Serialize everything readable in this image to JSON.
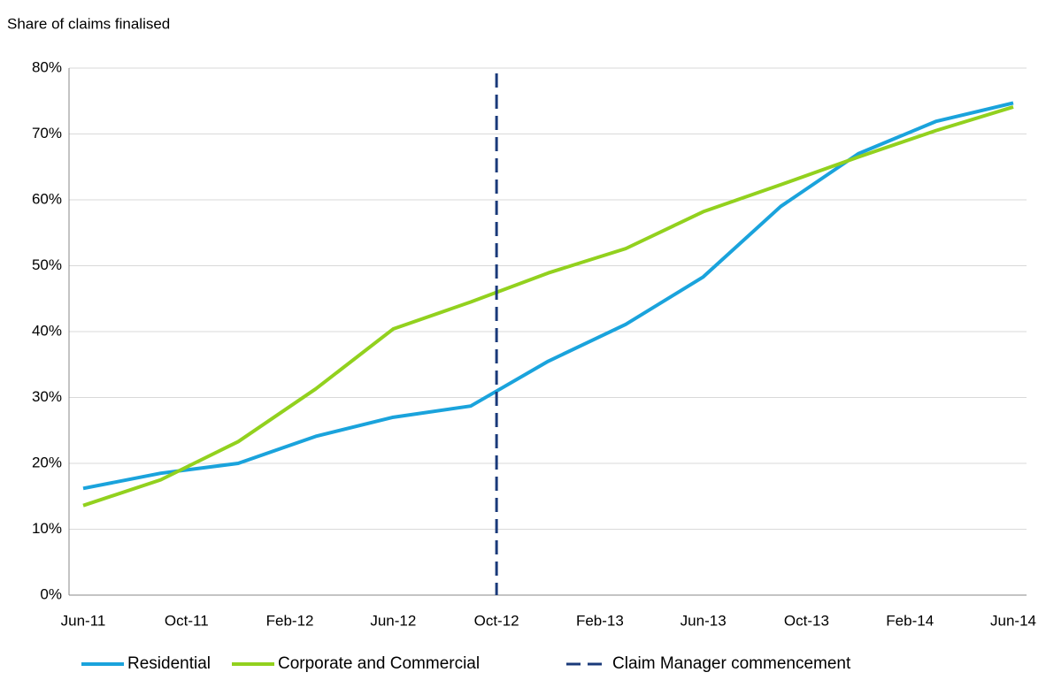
{
  "chart_data": {
    "type": "line",
    "title": "Share of claims finalised",
    "x": [
      "Jun-11",
      "Sep-11",
      "Dec-11",
      "Mar-12",
      "Jun-12",
      "Sep-12",
      "Dec-12",
      "Mar-13",
      "Jun-13",
      "Sep-13",
      "Dec-13",
      "Mar-14",
      "Jun-14"
    ],
    "series": [
      {
        "name": "Residential",
        "color": "#1aa3dc",
        "values": [
          16.2,
          18.5,
          20.0,
          24.1,
          27.0,
          28.7,
          35.5,
          41.1,
          48.3,
          59.0,
          67.0,
          71.9,
          74.7
        ]
      },
      {
        "name": "Corporate and Commercial",
        "color": "#92d11e",
        "values": [
          13.6,
          17.5,
          23.3,
          31.3,
          40.4,
          44.5,
          48.9,
          52.6,
          58.2,
          62.3,
          66.5,
          70.5,
          74.1
        ]
      }
    ],
    "vlines": [
      {
        "name": "Claim Manager commencement",
        "x": "Oct-12",
        "color": "#1a3a7a"
      }
    ],
    "xticks": [
      "Jun-11",
      "Oct-11",
      "Feb-12",
      "Jun-12",
      "Oct-12",
      "Feb-13",
      "Jun-13",
      "Oct-13",
      "Feb-14",
      "Jun-14"
    ],
    "ylim": [
      0,
      80
    ],
    "yticks": [
      {
        "value": 0,
        "label": "0%"
      },
      {
        "value": 10,
        "label": "10%"
      },
      {
        "value": 20,
        "label": "20%"
      },
      {
        "value": 30,
        "label": "30%"
      },
      {
        "value": 40,
        "label": "40%"
      },
      {
        "value": 50,
        "label": "50%"
      },
      {
        "value": 60,
        "label": "60%"
      },
      {
        "value": 70,
        "label": "70%"
      },
      {
        "value": 80,
        "label": "80%"
      }
    ],
    "grid": true,
    "legend": "bottom"
  }
}
